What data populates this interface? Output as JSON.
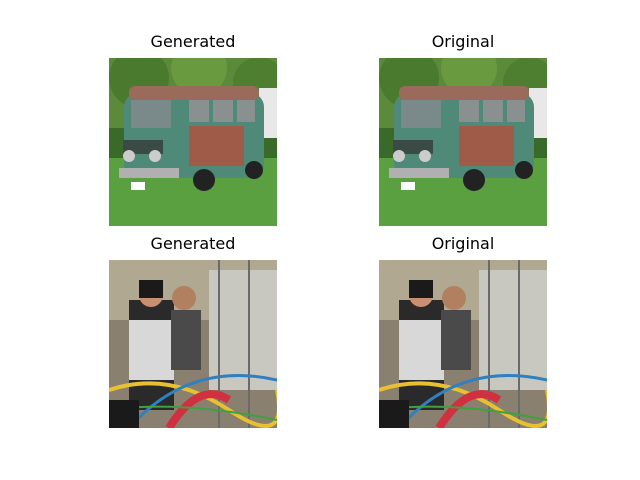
{
  "panels": [
    {
      "title": "Generated",
      "image": "vw-bus-image"
    },
    {
      "title": "Original",
      "image": "vw-bus-image"
    },
    {
      "title": "Generated",
      "image": "lab-people-image"
    },
    {
      "title": "Original",
      "image": "lab-people-image"
    }
  ]
}
